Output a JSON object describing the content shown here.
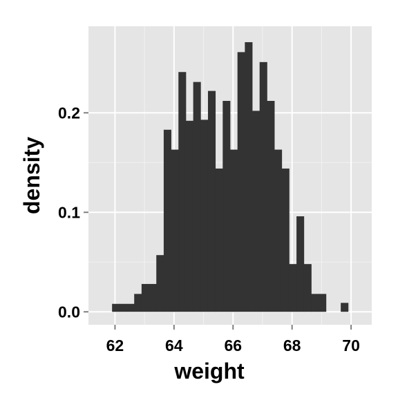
{
  "chart_data": {
    "type": "bar",
    "subtype": "histogram",
    "xlabel": "weight",
    "ylabel": "density",
    "xlim": [
      61.1,
      70.7
    ],
    "ylim": [
      -0.013,
      0.287
    ],
    "x_ticks": [
      62,
      64,
      66,
      68,
      70
    ],
    "x_tick_labels": [
      "62",
      "64",
      "66",
      "68",
      "70"
    ],
    "y_ticks": [
      0.0,
      0.1,
      0.2
    ],
    "y_tick_labels": [
      "0.0",
      "0.1",
      "0.2"
    ],
    "grid": true,
    "bin_width": 0.25,
    "bins": [
      {
        "x0": 61.9,
        "x1": 62.15,
        "density": 0.008
      },
      {
        "x0": 62.15,
        "x1": 62.4,
        "density": 0.008
      },
      {
        "x0": 62.4,
        "x1": 62.65,
        "density": 0.008
      },
      {
        "x0": 62.65,
        "x1": 62.9,
        "density": 0.018
      },
      {
        "x0": 62.9,
        "x1": 63.15,
        "density": 0.028
      },
      {
        "x0": 63.15,
        "x1": 63.4,
        "density": 0.028
      },
      {
        "x0": 63.4,
        "x1": 63.65,
        "density": 0.057
      },
      {
        "x0": 63.65,
        "x1": 63.9,
        "density": 0.183
      },
      {
        "x0": 63.9,
        "x1": 64.15,
        "density": 0.163
      },
      {
        "x0": 64.15,
        "x1": 64.4,
        "density": 0.241
      },
      {
        "x0": 64.4,
        "x1": 64.65,
        "density": 0.192
      },
      {
        "x0": 64.65,
        "x1": 64.9,
        "density": 0.231
      },
      {
        "x0": 64.9,
        "x1": 65.15,
        "density": 0.193
      },
      {
        "x0": 65.15,
        "x1": 65.4,
        "density": 0.222
      },
      {
        "x0": 65.4,
        "x1": 65.65,
        "density": 0.144
      },
      {
        "x0": 65.65,
        "x1": 65.9,
        "density": 0.212
      },
      {
        "x0": 65.9,
        "x1": 66.15,
        "density": 0.163
      },
      {
        "x0": 66.15,
        "x1": 66.4,
        "density": 0.261
      },
      {
        "x0": 66.4,
        "x1": 66.65,
        "density": 0.271
      },
      {
        "x0": 66.65,
        "x1": 66.9,
        "density": 0.202
      },
      {
        "x0": 66.9,
        "x1": 67.15,
        "density": 0.251
      },
      {
        "x0": 67.15,
        "x1": 67.4,
        "density": 0.212
      },
      {
        "x0": 67.4,
        "x1": 67.65,
        "density": 0.163
      },
      {
        "x0": 67.65,
        "x1": 67.9,
        "density": 0.144
      },
      {
        "x0": 67.9,
        "x1": 68.15,
        "density": 0.048
      },
      {
        "x0": 68.15,
        "x1": 68.4,
        "density": 0.096
      },
      {
        "x0": 68.4,
        "x1": 68.65,
        "density": 0.048
      },
      {
        "x0": 68.65,
        "x1": 68.9,
        "density": 0.018
      },
      {
        "x0": 68.9,
        "x1": 69.15,
        "density": 0.018
      },
      {
        "x0": 69.15,
        "x1": 69.4,
        "density": 0.0
      },
      {
        "x0": 69.4,
        "x1": 69.65,
        "density": 0.0
      },
      {
        "x0": 69.65,
        "x1": 69.9,
        "density": 0.009
      }
    ],
    "colors": {
      "panel_background": "#e5e5e5",
      "grid_major": "#ffffff",
      "grid_minor": "#f2f2f2",
      "bar_fill": "#333333",
      "tick_mark": "#7f7f7f"
    }
  }
}
